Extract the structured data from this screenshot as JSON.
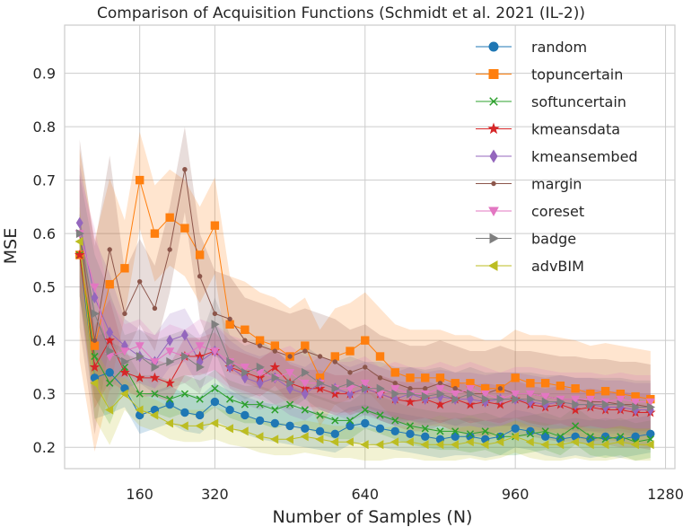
{
  "chart_data": {
    "type": "line",
    "title": "Comparison of Acquisition Functions (Schmidt et al. 2021 (IL-2))",
    "xlabel": "Number of Samples (N)",
    "ylabel": "MSE",
    "xlim": [
      0,
      1300
    ],
    "ylim": [
      0.16,
      0.99
    ],
    "xticks": [
      160,
      320,
      640,
      960,
      1280
    ],
    "yticks": [
      0.2,
      0.3,
      0.4,
      0.5,
      0.6,
      0.7,
      0.8,
      0.9
    ],
    "grid": true,
    "legend_position": "top-right",
    "series": [
      {
        "name": "random",
        "color": "#1f77b4",
        "marker": "circle",
        "x": [
          32,
          64,
          96,
          128,
          160,
          192,
          224,
          256,
          288,
          320,
          352,
          384,
          416,
          448,
          480,
          512,
          544,
          576,
          608,
          640,
          672,
          704,
          736,
          768,
          800,
          832,
          864,
          896,
          928,
          960,
          992,
          1024,
          1056,
          1088,
          1120,
          1152,
          1184,
          1216,
          1248
        ],
        "y": [
          0.56,
          0.33,
          0.34,
          0.31,
          0.26,
          0.27,
          0.28,
          0.265,
          0.26,
          0.285,
          0.27,
          0.26,
          0.25,
          0.245,
          0.24,
          0.235,
          0.23,
          0.225,
          0.24,
          0.245,
          0.235,
          0.23,
          0.225,
          0.22,
          0.215,
          0.22,
          0.22,
          0.215,
          0.22,
          0.235,
          0.23,
          0.22,
          0.215,
          0.22,
          0.215,
          0.22,
          0.215,
          0.22,
          0.225
        ],
        "band": 0.035
      },
      {
        "name": "topuncertain",
        "color": "#ff7f0e",
        "marker": "square",
        "x": [
          32,
          64,
          96,
          128,
          160,
          192,
          224,
          256,
          288,
          320,
          352,
          384,
          416,
          448,
          480,
          512,
          544,
          576,
          608,
          640,
          672,
          704,
          736,
          768,
          800,
          832,
          864,
          896,
          928,
          960,
          992,
          1024,
          1056,
          1088,
          1120,
          1152,
          1184,
          1216,
          1248
        ],
        "y": [
          0.56,
          0.39,
          0.505,
          0.535,
          0.7,
          0.6,
          0.63,
          0.61,
          0.56,
          0.615,
          0.43,
          0.42,
          0.4,
          0.39,
          0.37,
          0.39,
          0.33,
          0.37,
          0.38,
          0.4,
          0.37,
          0.34,
          0.33,
          0.33,
          0.33,
          0.32,
          0.32,
          0.31,
          0.31,
          0.33,
          0.32,
          0.32,
          0.315,
          0.31,
          0.3,
          0.305,
          0.3,
          0.295,
          0.29
        ],
        "band": 0.09
      },
      {
        "name": "softuncertain",
        "color": "#2ca02c",
        "marker": "x",
        "x": [
          32,
          64,
          96,
          128,
          160,
          192,
          224,
          256,
          288,
          320,
          352,
          384,
          416,
          448,
          480,
          512,
          544,
          576,
          608,
          640,
          672,
          704,
          736,
          768,
          800,
          832,
          864,
          896,
          928,
          960,
          992,
          1024,
          1056,
          1088,
          1120,
          1152,
          1184,
          1216,
          1248
        ],
        "y": [
          0.56,
          0.37,
          0.32,
          0.35,
          0.3,
          0.3,
          0.29,
          0.3,
          0.29,
          0.31,
          0.29,
          0.28,
          0.28,
          0.27,
          0.28,
          0.27,
          0.26,
          0.25,
          0.25,
          0.27,
          0.26,
          0.25,
          0.24,
          0.235,
          0.23,
          0.23,
          0.225,
          0.23,
          0.22,
          0.22,
          0.225,
          0.23,
          0.22,
          0.24,
          0.22,
          0.215,
          0.22,
          0.21,
          0.215
        ],
        "band": 0.035
      },
      {
        "name": "kmeansdata",
        "color": "#d62728",
        "marker": "star",
        "x": [
          32,
          64,
          96,
          128,
          160,
          192,
          224,
          256,
          288,
          320,
          352,
          384,
          416,
          448,
          480,
          512,
          544,
          576,
          608,
          640,
          672,
          704,
          736,
          768,
          800,
          832,
          864,
          896,
          928,
          960,
          992,
          1024,
          1056,
          1088,
          1120,
          1152,
          1184,
          1216,
          1248
        ],
        "y": [
          0.56,
          0.35,
          0.4,
          0.34,
          0.33,
          0.33,
          0.32,
          0.37,
          0.37,
          0.38,
          0.35,
          0.34,
          0.33,
          0.35,
          0.32,
          0.31,
          0.31,
          0.3,
          0.3,
          0.31,
          0.3,
          0.29,
          0.285,
          0.29,
          0.28,
          0.29,
          0.28,
          0.285,
          0.28,
          0.29,
          0.28,
          0.275,
          0.28,
          0.27,
          0.275,
          0.27,
          0.27,
          0.265,
          0.265
        ],
        "band": 0.035
      },
      {
        "name": "kmeansembed",
        "color": "#9467bd",
        "marker": "diamond",
        "x": [
          32,
          64,
          96,
          128,
          160,
          192,
          224,
          256,
          288,
          320,
          352,
          384,
          416,
          448,
          480,
          512,
          544,
          576,
          608,
          640,
          672,
          704,
          736,
          768,
          800,
          832,
          864,
          896,
          928,
          960,
          992,
          1024,
          1056,
          1088,
          1120,
          1152,
          1184,
          1216,
          1248
        ],
        "y": [
          0.62,
          0.48,
          0.415,
          0.39,
          0.37,
          0.36,
          0.4,
          0.41,
          0.36,
          0.38,
          0.35,
          0.33,
          0.32,
          0.33,
          0.31,
          0.3,
          0.32,
          0.31,
          0.3,
          0.31,
          0.3,
          0.29,
          0.3,
          0.29,
          0.295,
          0.29,
          0.29,
          0.285,
          0.29,
          0.29,
          0.285,
          0.28,
          0.285,
          0.28,
          0.28,
          0.275,
          0.275,
          0.27,
          0.27
        ],
        "band": 0.05
      },
      {
        "name": "margin",
        "color": "#8c564b",
        "marker": "dot",
        "x": [
          32,
          64,
          96,
          128,
          160,
          192,
          224,
          256,
          288,
          320,
          352,
          384,
          416,
          448,
          480,
          512,
          544,
          576,
          608,
          640,
          672,
          704,
          736,
          768,
          800,
          832,
          864,
          896,
          928,
          960,
          992,
          1024,
          1056,
          1088,
          1120,
          1152,
          1184,
          1216,
          1248
        ],
        "y": [
          0.6,
          0.4,
          0.57,
          0.45,
          0.51,
          0.46,
          0.57,
          0.72,
          0.52,
          0.45,
          0.44,
          0.4,
          0.39,
          0.38,
          0.37,
          0.38,
          0.37,
          0.36,
          0.34,
          0.35,
          0.33,
          0.32,
          0.31,
          0.31,
          0.32,
          0.31,
          0.3,
          0.3,
          0.31,
          0.3,
          0.3,
          0.295,
          0.29,
          0.29,
          0.285,
          0.285,
          0.28,
          0.28,
          0.275
        ],
        "band": 0.08
      },
      {
        "name": "coreset",
        "color": "#e377c2",
        "marker": "triangle-down",
        "x": [
          32,
          64,
          96,
          128,
          160,
          192,
          224,
          256,
          288,
          320,
          352,
          384,
          416,
          448,
          480,
          512,
          544,
          576,
          608,
          640,
          672,
          704,
          736,
          768,
          800,
          832,
          864,
          896,
          928,
          960,
          992,
          1024,
          1056,
          1088,
          1120,
          1152,
          1184,
          1216,
          1248
        ],
        "y": [
          0.6,
          0.5,
          0.37,
          0.38,
          0.39,
          0.36,
          0.38,
          0.37,
          0.39,
          0.38,
          0.36,
          0.35,
          0.34,
          0.33,
          0.34,
          0.32,
          0.32,
          0.31,
          0.31,
          0.32,
          0.3,
          0.31,
          0.3,
          0.3,
          0.31,
          0.3,
          0.31,
          0.3,
          0.29,
          0.3,
          0.3,
          0.295,
          0.29,
          0.29,
          0.29,
          0.285,
          0.29,
          0.285,
          0.285
        ],
        "band": 0.05
      },
      {
        "name": "badge",
        "color": "#7f7f7f",
        "marker": "triangle-right",
        "x": [
          32,
          64,
          96,
          128,
          160,
          192,
          224,
          256,
          288,
          320,
          352,
          384,
          416,
          448,
          480,
          512,
          544,
          576,
          608,
          640,
          672,
          704,
          736,
          768,
          800,
          832,
          864,
          896,
          928,
          960,
          992,
          1024,
          1056,
          1088,
          1120,
          1152,
          1184,
          1216,
          1248
        ],
        "y": [
          0.6,
          0.45,
          0.38,
          0.36,
          0.37,
          0.35,
          0.36,
          0.37,
          0.35,
          0.43,
          0.36,
          0.34,
          0.35,
          0.33,
          0.32,
          0.34,
          0.32,
          0.31,
          0.32,
          0.31,
          0.31,
          0.3,
          0.3,
          0.295,
          0.3,
          0.29,
          0.3,
          0.29,
          0.29,
          0.29,
          0.29,
          0.285,
          0.285,
          0.28,
          0.28,
          0.28,
          0.28,
          0.275,
          0.275
        ],
        "band": 0.05
      },
      {
        "name": "advBIM",
        "color": "#bcbd22",
        "marker": "triangle-left",
        "x": [
          32,
          64,
          96,
          128,
          160,
          192,
          224,
          256,
          288,
          320,
          352,
          384,
          416,
          448,
          480,
          512,
          544,
          576,
          608,
          640,
          672,
          704,
          736,
          768,
          800,
          832,
          864,
          896,
          928,
          960,
          992,
          1024,
          1056,
          1088,
          1120,
          1152,
          1184,
          1216,
          1248
        ],
        "y": [
          0.585,
          0.32,
          0.27,
          0.3,
          0.27,
          0.26,
          0.245,
          0.24,
          0.24,
          0.245,
          0.235,
          0.23,
          0.22,
          0.215,
          0.215,
          0.22,
          0.215,
          0.21,
          0.21,
          0.205,
          0.205,
          0.21,
          0.21,
          0.205,
          0.205,
          0.205,
          0.21,
          0.205,
          0.21,
          0.22,
          0.21,
          0.205,
          0.205,
          0.21,
          0.205,
          0.205,
          0.21,
          0.205,
          0.205
        ],
        "band": 0.03
      }
    ]
  }
}
